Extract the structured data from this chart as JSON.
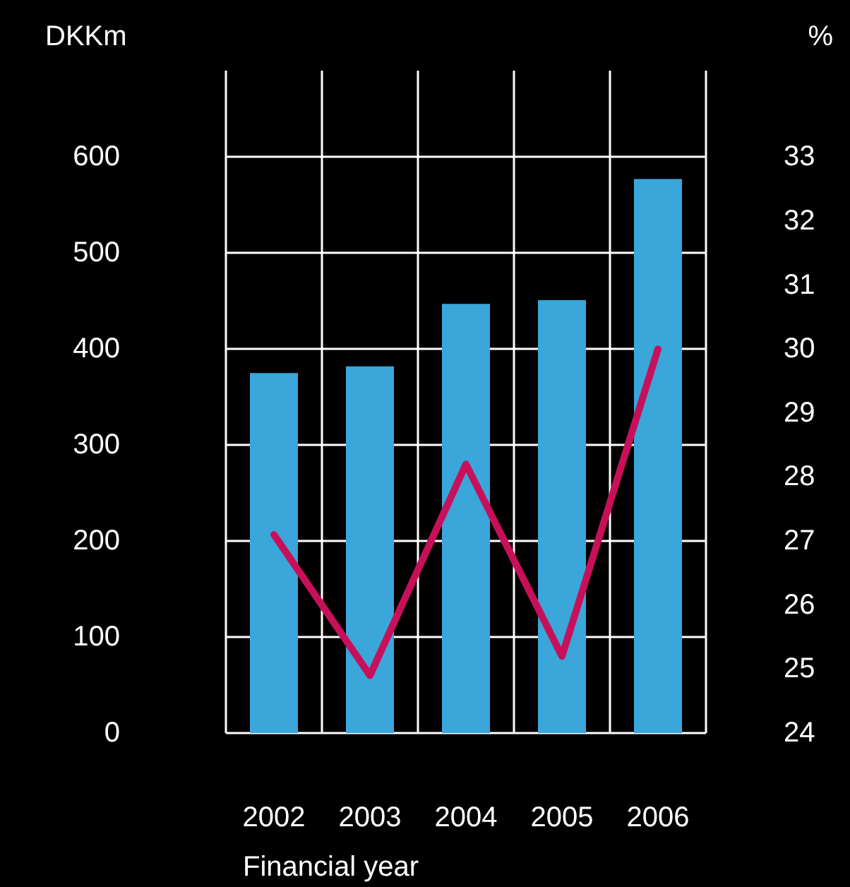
{
  "chart_data": {
    "type": "bar",
    "categories": [
      "2002",
      "2003",
      "2004",
      "2005",
      "2006"
    ],
    "xlabel": "Financial year",
    "ylabel": "DKKm",
    "y2label": "%",
    "series": [
      {
        "color": "#3aa6da",
        "values": [
          375,
          382,
          447,
          451,
          577
        ]
      },
      {
        "type": "line",
        "axis": "y2",
        "color": "#c8105a",
        "values": [
          27.1,
          24.9,
          28.2,
          25.2,
          30.0
        ]
      }
    ],
    "ylim": [
      0,
      690
    ],
    "yticks": [
      0,
      100,
      200,
      300,
      400,
      500,
      600
    ],
    "y2lim": [
      24,
      34.35
    ],
    "y2ticks": [
      24,
      25,
      26,
      27,
      28,
      29,
      30,
      31,
      32,
      33
    ],
    "grid": true,
    "marker": "none",
    "line_style": "solid"
  }
}
